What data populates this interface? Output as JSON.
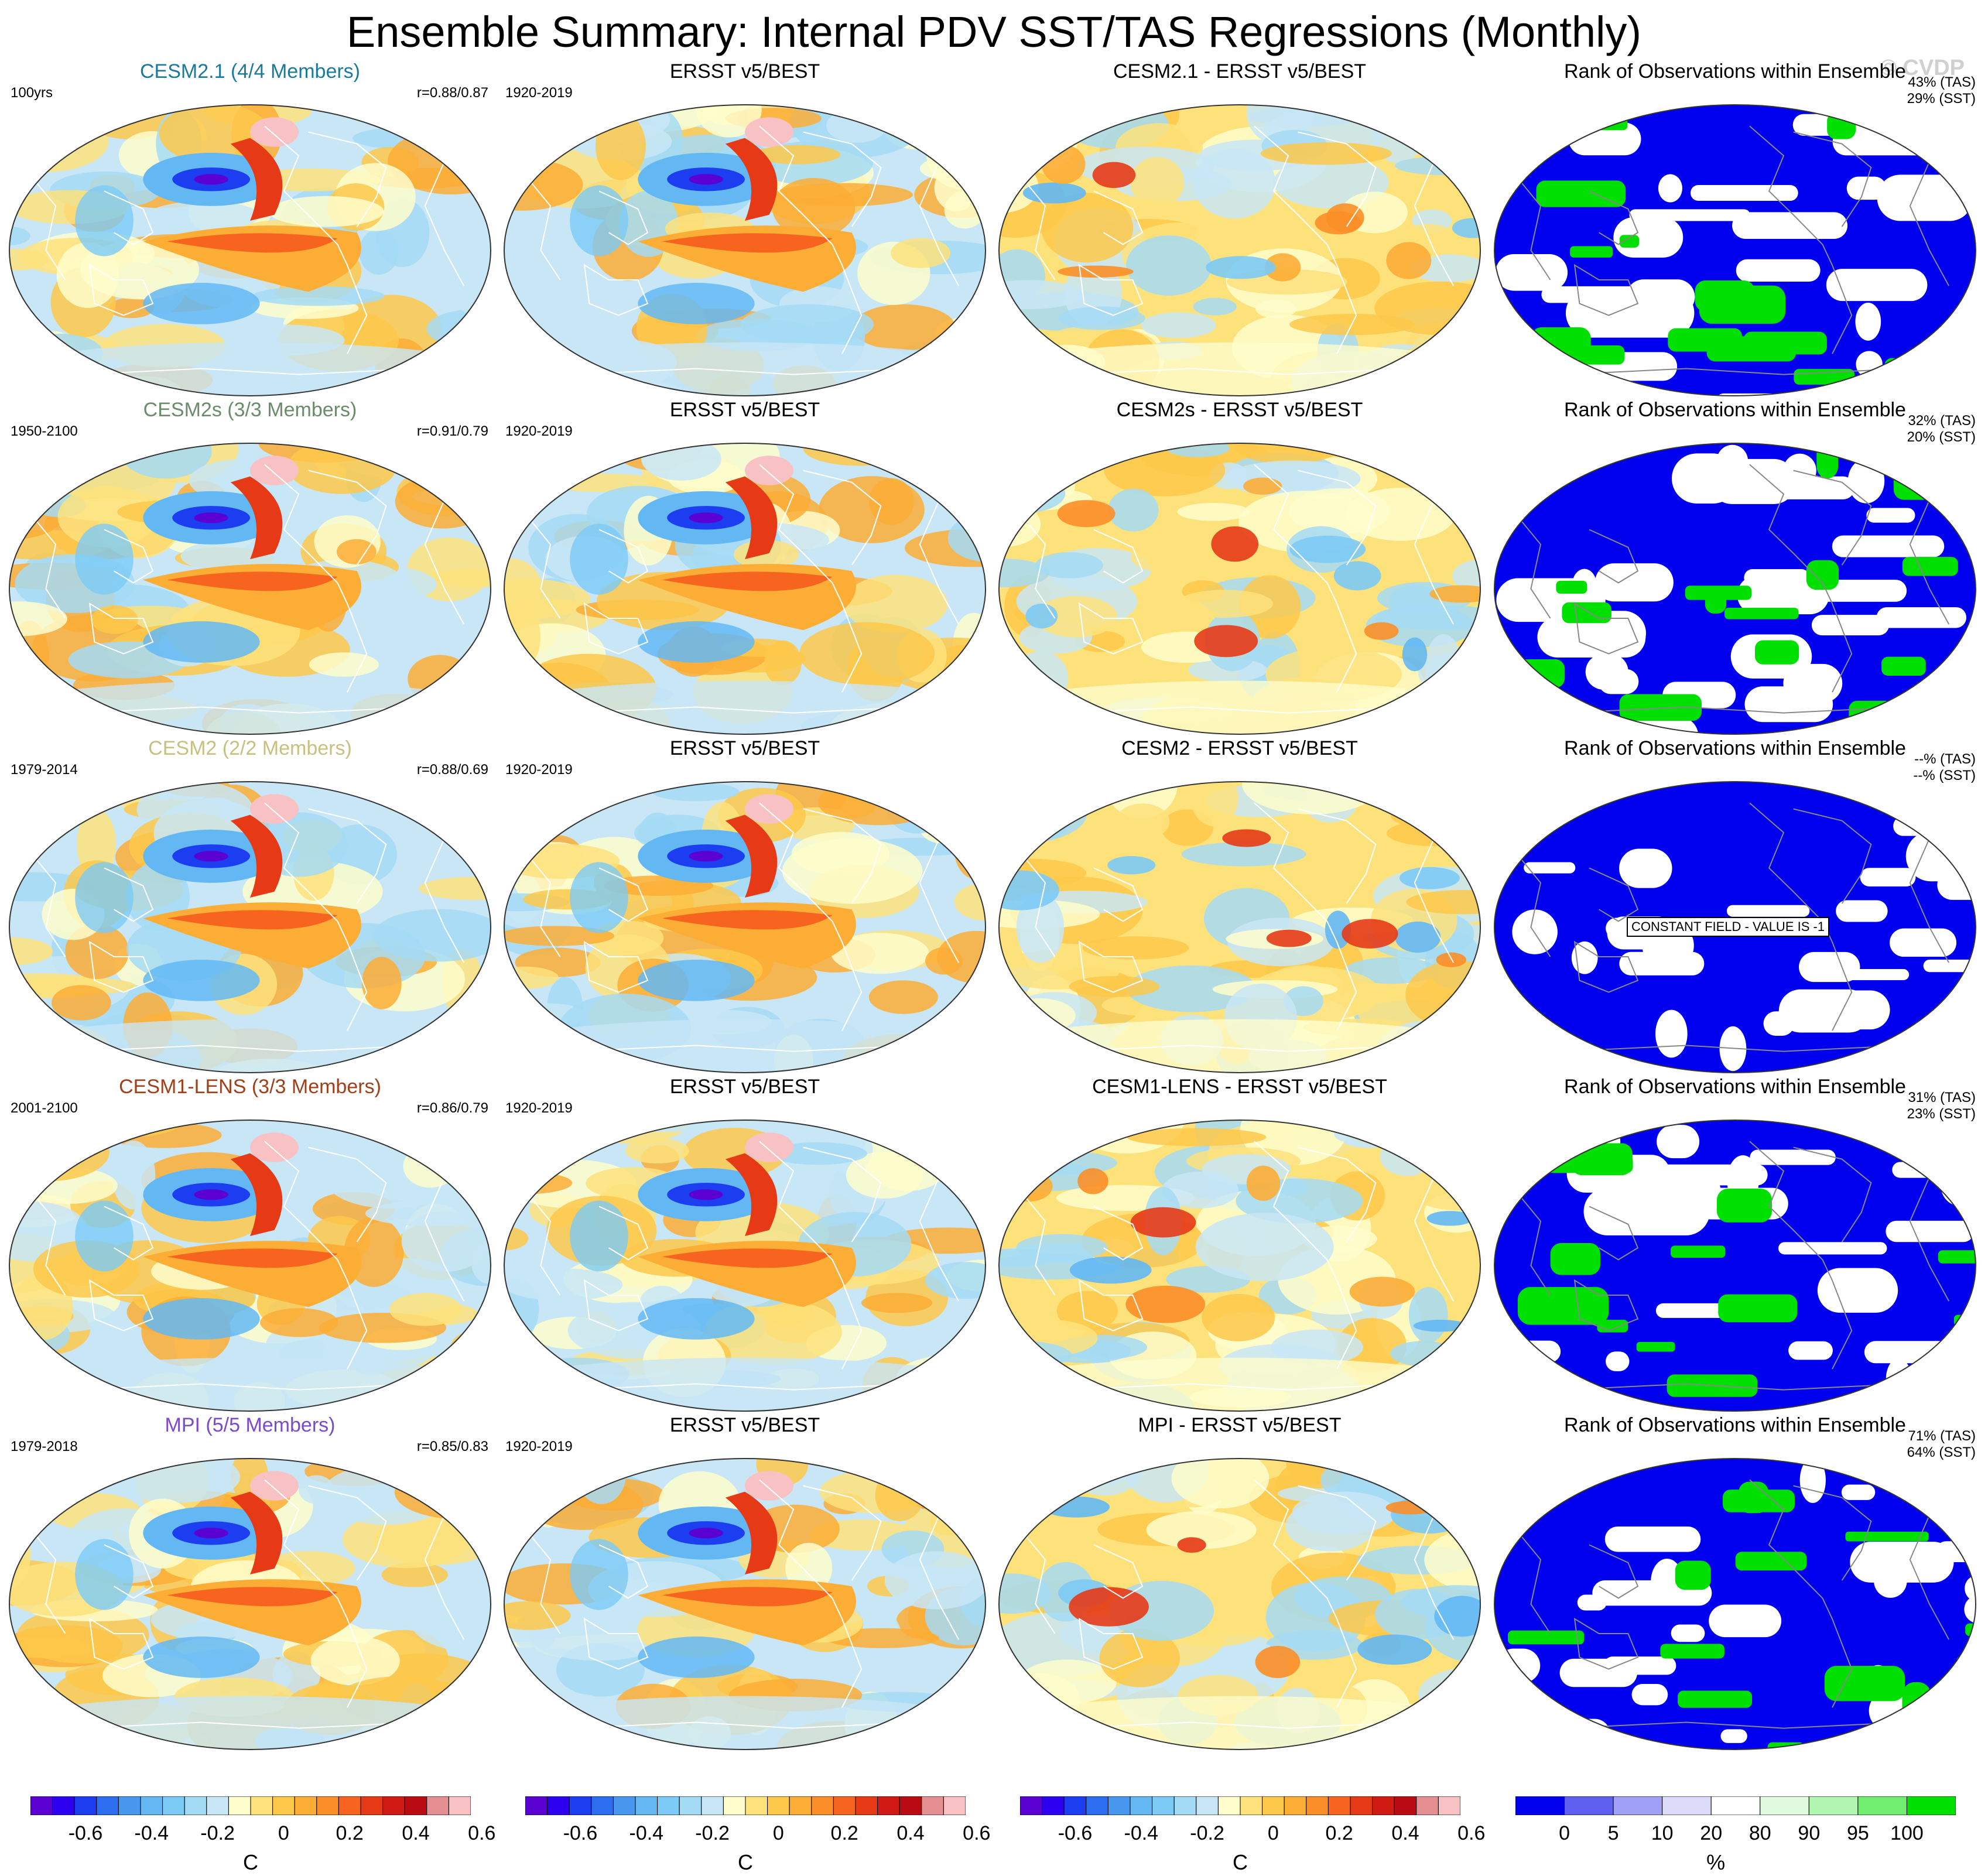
{
  "title": "Ensemble Summary: Internal PDV SST/TAS Regressions (Monthly)",
  "copyright": "© CVDP",
  "colors": {
    "diverging": [
      "#5a00d2",
      "#2d00f0",
      "#1d3df0",
      "#2d6ef0",
      "#4897ef",
      "#63b8f4",
      "#7ccaf6",
      "#a4dbf4",
      "#c8e6f6",
      "#fefdcb",
      "#fde27c",
      "#fdc84a",
      "#fcad36",
      "#fb8e28",
      "#f6641f",
      "#e63a17",
      "#d21a14",
      "#ba0a12",
      "#e58f93",
      "#f8c2c4"
    ],
    "rank": [
      "#0000ee",
      "#6060f0",
      "#a0a0f6",
      "#dcdcfa",
      "#ffffff",
      "#e0fae0",
      "#b0f5b0",
      "#70ee70",
      "#00e000"
    ]
  },
  "rows": [
    {
      "model": {
        "title": "CESM2.1 (4/4 Members)",
        "title_color": "#1b7a99",
        "period": "100yrs",
        "r": "r=0.88/0.87"
      },
      "obs": {
        "title": "ERSST v5/BEST",
        "period": "1920-2019"
      },
      "diff": {
        "title": "CESM2.1 - ERSST v5/BEST"
      },
      "rank": {
        "title": "Rank of Observations within Ensemble",
        "tas": "43% (TAS)",
        "sst": "29% (SST)"
      }
    },
    {
      "model": {
        "title": "CESM2s (3/3 Members)",
        "title_color": "#6a8c6a",
        "period": "1950-2100",
        "r": "r=0.91/0.79"
      },
      "obs": {
        "title": "ERSST v5/BEST",
        "period": "1920-2019"
      },
      "diff": {
        "title": "CESM2s - ERSST v5/BEST"
      },
      "rank": {
        "title": "Rank of Observations within Ensemble",
        "tas": "32% (TAS)",
        "sst": "20% (SST)"
      }
    },
    {
      "model": {
        "title": "CESM2 (2/2 Members)",
        "title_color": "#c8c080",
        "period": "1979-2014",
        "r": "r=0.88/0.69"
      },
      "obs": {
        "title": "ERSST v5/BEST",
        "period": "1920-2019"
      },
      "diff": {
        "title": "CESM2 - ERSST v5/BEST"
      },
      "rank": {
        "title": "Rank of Observations within Ensemble",
        "tas": "--% (TAS)",
        "sst": "--% (SST)",
        "note": "CONSTANT FIELD - VALUE IS -1"
      }
    },
    {
      "model": {
        "title": "CESM1-LENS (3/3 Members)",
        "title_color": "#a0401a",
        "period": "2001-2100",
        "r": "r=0.86/0.79"
      },
      "obs": {
        "title": "ERSST v5/BEST",
        "period": "1920-2019"
      },
      "diff": {
        "title": "CESM1-LENS - ERSST v5/BEST"
      },
      "rank": {
        "title": "Rank of Observations within Ensemble",
        "tas": "31% (TAS)",
        "sst": "23% (SST)"
      }
    },
    {
      "model": {
        "title": "MPI (5/5 Members)",
        "title_color": "#7a4ad0",
        "period": "1979-2018",
        "r": "r=0.85/0.83"
      },
      "obs": {
        "title": "ERSST v5/BEST",
        "period": "1920-2019"
      },
      "diff": {
        "title": "MPI - ERSST v5/BEST"
      },
      "rank": {
        "title": "Rank of Observations within Ensemble",
        "tas": "71% (TAS)",
        "sst": "64% (SST)"
      }
    }
  ],
  "colorbars": [
    {
      "ticks": [
        "-0.6",
        "-0.4",
        "-0.2",
        "0",
        "0.2",
        "0.4",
        "0.6"
      ],
      "unit": "C"
    },
    {
      "ticks": [
        "-0.6",
        "-0.4",
        "-0.2",
        "0",
        "0.2",
        "0.4",
        "0.6"
      ],
      "unit": "C"
    },
    {
      "ticks": [
        "-0.6",
        "-0.4",
        "-0.2",
        "0",
        "0.2",
        "0.4",
        "0.6"
      ],
      "unit": "C"
    },
    {
      "ticks": [
        "0",
        "5",
        "10",
        "20",
        "80",
        "90",
        "95",
        "100"
      ],
      "unit": "%"
    }
  ]
}
